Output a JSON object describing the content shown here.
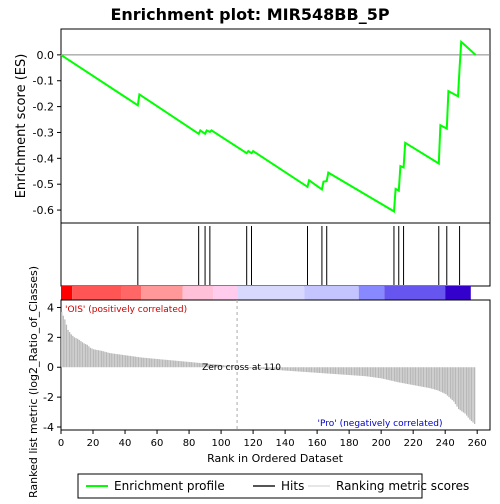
{
  "chart_data": {
    "type": "line",
    "title": "Enrichment plot: MIR548BB_5P",
    "es_panel": {
      "ylabel": "Enrichment score (ES)",
      "ylim": [
        -0.65,
        0.1
      ],
      "yticks": [
        0.0,
        -0.1,
        -0.2,
        -0.3,
        -0.4,
        -0.5,
        -0.6
      ],
      "ytick_labels": [
        "0.0",
        "-0.1",
        "-0.2",
        "-0.3",
        "-0.4",
        "-0.5",
        "-0.6"
      ],
      "series": [
        {
          "name": "Enrichment profile",
          "color": "#00ff00",
          "x": [
            0,
            48,
            49,
            86,
            87,
            90,
            91,
            93,
            94,
            116,
            117,
            119,
            120,
            154,
            155,
            163,
            164,
            166,
            167,
            208,
            209,
            211,
            212,
            214,
            215,
            236,
            237,
            241,
            242,
            248,
            249,
            250,
            251,
            259
          ],
          "y": [
            0.0,
            -0.195,
            -0.153,
            -0.305,
            -0.292,
            -0.305,
            -0.292,
            -0.298,
            -0.292,
            -0.38,
            -0.372,
            -0.38,
            -0.372,
            -0.51,
            -0.485,
            -0.52,
            -0.49,
            -0.488,
            -0.455,
            -0.605,
            -0.518,
            -0.525,
            -0.43,
            -0.435,
            -0.34,
            -0.42,
            -0.272,
            -0.285,
            -0.14,
            -0.16,
            -0.05,
            0.05,
            0.045,
            0.0
          ]
        }
      ]
    },
    "hits": {
      "name": "Hits",
      "positions": [
        48,
        86,
        90,
        93,
        116,
        119,
        154,
        163,
        166,
        208,
        211,
        214,
        236,
        241,
        249
      ]
    },
    "ranking_panel": {
      "ylabel": "Ranked list metric (log2_Ratio_of_Classes)",
      "ylim": [
        -4.2,
        4.5
      ],
      "yticks": [
        4,
        2,
        0,
        -2,
        -4
      ],
      "ytick_labels": [
        "4",
        "2",
        "0",
        "-2",
        "-4"
      ],
      "series_name": "Ranking metric scores",
      "points": [
        [
          0,
          3.7
        ],
        [
          2,
          3.2
        ],
        [
          4,
          2.5
        ],
        [
          6,
          2.2
        ],
        [
          8,
          2.0
        ],
        [
          10,
          1.9
        ],
        [
          12,
          1.75
        ],
        [
          14,
          1.6
        ],
        [
          16,
          1.5
        ],
        [
          18,
          1.3
        ],
        [
          20,
          1.2
        ],
        [
          25,
          1.1
        ],
        [
          30,
          0.95
        ],
        [
          40,
          0.8
        ],
        [
          50,
          0.65
        ],
        [
          60,
          0.55
        ],
        [
          70,
          0.45
        ],
        [
          80,
          0.35
        ],
        [
          90,
          0.25
        ],
        [
          100,
          0.15
        ],
        [
          110,
          0.0
        ],
        [
          115,
          -0.05
        ],
        [
          130,
          -0.15
        ],
        [
          150,
          -0.3
        ],
        [
          170,
          -0.45
        ],
        [
          190,
          -0.6
        ],
        [
          200,
          -0.75
        ],
        [
          210,
          -1.0
        ],
        [
          220,
          -1.2
        ],
        [
          230,
          -1.4
        ],
        [
          235,
          -1.55
        ],
        [
          240,
          -1.8
        ],
        [
          245,
          -2.3
        ],
        [
          248,
          -2.8
        ],
        [
          252,
          -3.1
        ],
        [
          255,
          -3.5
        ],
        [
          258,
          -3.8
        ]
      ],
      "zero_cross_label": "Zero cross at 110",
      "zero_cross": 110,
      "pos_label": "'OIS' (positively correlated)",
      "neg_label": "'Pro' (negatively correlated)"
    },
    "xlabel": "Rank in Ordered Dataset",
    "xlim": [
      0,
      268
    ],
    "xticks": [
      0,
      20,
      40,
      60,
      80,
      100,
      120,
      140,
      160,
      180,
      200,
      220,
      240,
      260
    ],
    "xtick_labels": [
      "0",
      "20",
      "40",
      "60",
      "80",
      "100",
      "120",
      "140",
      "160",
      "180",
      "200",
      "220",
      "240",
      "260"
    ],
    "heat_band": [
      {
        "from": 0,
        "to": 7,
        "color": "#ff0000"
      },
      {
        "from": 7,
        "to": 38,
        "color": "#ff5555"
      },
      {
        "from": 38,
        "to": 50,
        "color": "#ff6666"
      },
      {
        "from": 50,
        "to": 76,
        "color": "#ff9999"
      },
      {
        "from": 76,
        "to": 95,
        "color": "#ffc0d8"
      },
      {
        "from": 95,
        "to": 110,
        "color": "#ffccee"
      },
      {
        "from": 110,
        "to": 152,
        "color": "#d8d8ff"
      },
      {
        "from": 152,
        "to": 186,
        "color": "#c4c4ff"
      },
      {
        "from": 186,
        "to": 202,
        "color": "#8888ff"
      },
      {
        "from": 202,
        "to": 240,
        "color": "#6655ee"
      },
      {
        "from": 240,
        "to": 256,
        "color": "#3300cc"
      }
    ],
    "legend": {
      "placement": "bottom",
      "entries": [
        {
          "label": "Enrichment profile",
          "color": "#00ff00"
        },
        {
          "label": "Hits",
          "color": "#555555"
        },
        {
          "label": "Ranking metric scores",
          "color": "#cccccc"
        }
      ]
    }
  }
}
